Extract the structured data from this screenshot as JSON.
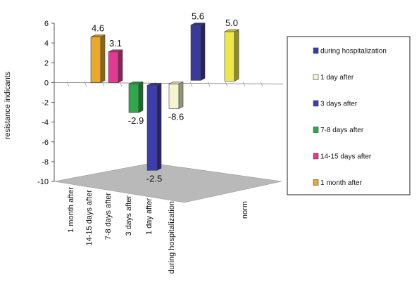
{
  "chart_data": {
    "type": "bar",
    "subtype": "3d-column",
    "ylabel": "resistance indicants",
    "ylim": [
      -10,
      6
    ],
    "yticks": [
      6,
      4,
      2,
      0,
      -2,
      -4,
      -6,
      -8,
      -10
    ],
    "row_labels": [
      "1 month after",
      "14-15 days after",
      "7-8 days after",
      "3 days after",
      "1 day after",
      "during hospitalization"
    ],
    "column_labels": [
      "norm"
    ],
    "series": [
      {
        "name": "during hospitalization",
        "color": "#3a3a9c",
        "norm": 5.6
      },
      {
        "name": "1 day after",
        "color": "#f4f4cf",
        "norm": -2.5
      },
      {
        "name": "3 days after",
        "color": "#3d3dad",
        "norm": -8.6
      },
      {
        "name": "7-8 days after",
        "color": "#2ea84a",
        "norm": -2.9
      },
      {
        "name": "14-15 days after",
        "color": "#e23a91",
        "norm": 3.1
      },
      {
        "name": "1 month after",
        "color": "#eaa928",
        "norm": 4.6
      }
    ],
    "extra_bar": {
      "color": "#eee847",
      "value": 5.0
    },
    "value_labels": [
      "4.6",
      "3.1",
      "-2.9",
      "-8.6",
      "-2.5",
      "5.6",
      "5.0"
    ],
    "legend": {
      "position": "right"
    },
    "floor_color": "#b9b9b9"
  }
}
